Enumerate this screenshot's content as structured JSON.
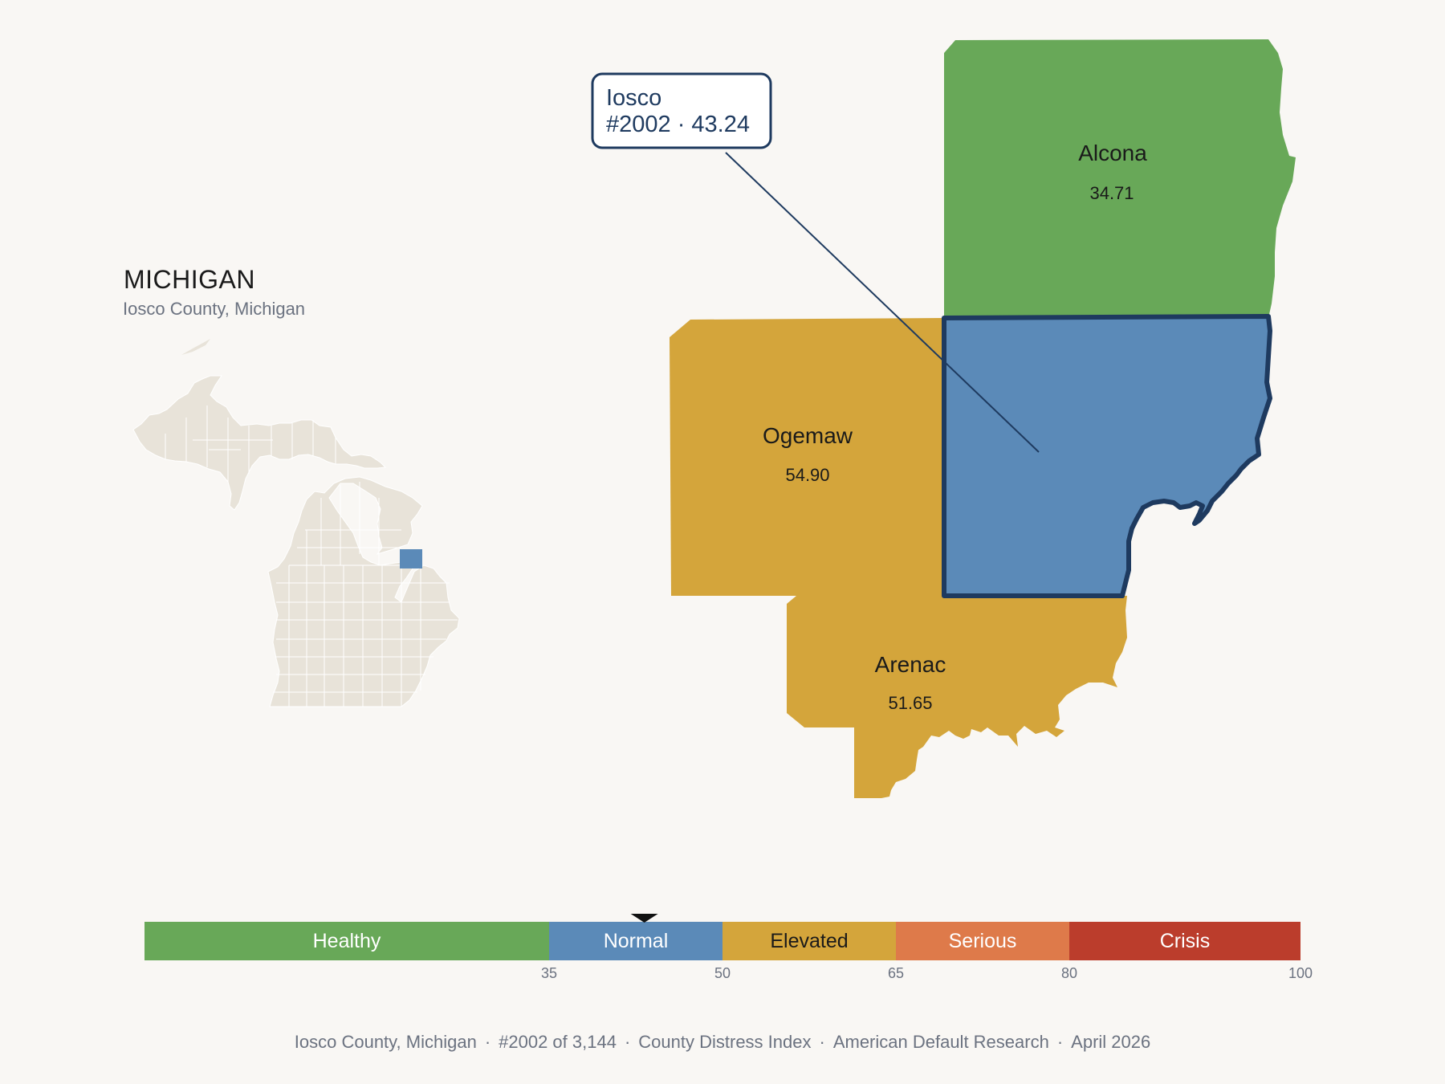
{
  "header": {
    "state": "MICHIGAN",
    "subtitle": "Iosco County, Michigan"
  },
  "map": {
    "selected_county": "Iosco",
    "callout": {
      "line1": "Iosco",
      "line2": "#2002 · 43.24"
    },
    "counties": [
      {
        "name": "Alcona",
        "value": "34.71",
        "category": "Healthy",
        "color": "#68a858"
      },
      {
        "name": "Ogemaw",
        "value": "54.90",
        "category": "Elevated",
        "color": "#d4a53b"
      },
      {
        "name": "Arenac",
        "value": "51.65",
        "category": "Elevated",
        "color": "#d4a53b"
      },
      {
        "name": "Iosco",
        "value": "43.24",
        "category": "Normal",
        "color": "#5b8ab8"
      }
    ],
    "outline_color": "#1e3a5f",
    "locator_fill": "#e8e3d9",
    "locator_highlight": "#5b8ab8"
  },
  "legend": {
    "segments": [
      {
        "label": "Healthy",
        "color": "#68a858",
        "text_color": "#ffffff"
      },
      {
        "label": "Normal",
        "color": "#5b8ab8",
        "text_color": "#ffffff"
      },
      {
        "label": "Elevated",
        "color": "#d4a53b",
        "text_color": "#1a1a1a"
      },
      {
        "label": "Serious",
        "color": "#de7a4a",
        "text_color": "#ffffff"
      },
      {
        "label": "Crisis",
        "color": "#bb3d2c",
        "text_color": "#ffffff"
      }
    ],
    "ticks": [
      "35",
      "50",
      "65",
      "80",
      "100"
    ],
    "marker_value": 43.24,
    "scale_min": 0,
    "scale_max": 100
  },
  "footer": {
    "items": [
      "Iosco County, Michigan",
      "#2002 of 3,144",
      "County Distress Index",
      "American Default Research",
      "April 2026"
    ]
  }
}
